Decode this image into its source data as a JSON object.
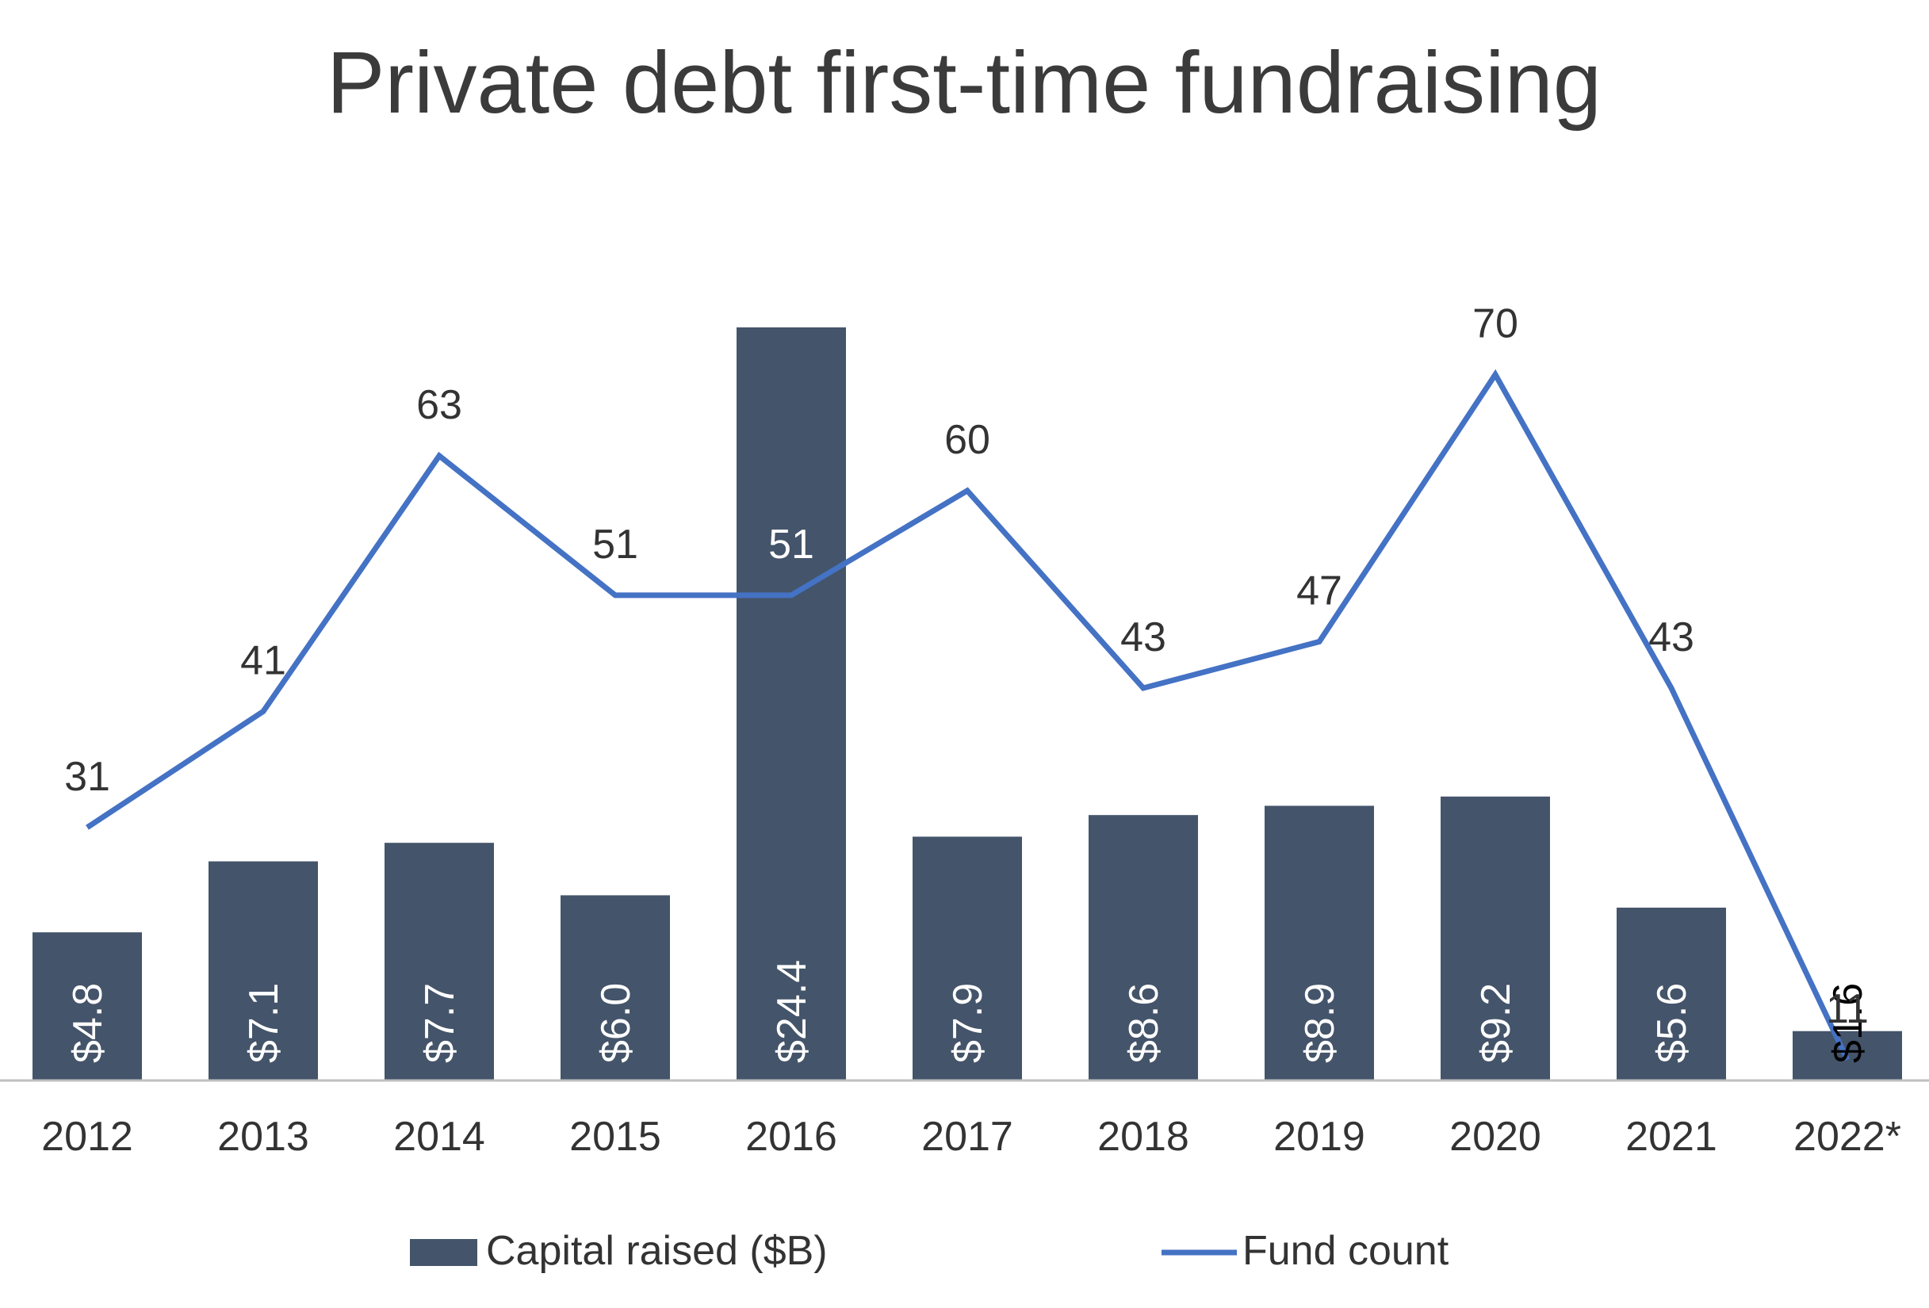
{
  "chart_data": {
    "type": "bar",
    "title": "Private debt first-time fundraising",
    "categories": [
      "2012",
      "2013",
      "2014",
      "2015",
      "2016",
      "2017",
      "2018",
      "2019",
      "2020",
      "2021",
      "2022*"
    ],
    "series": [
      {
        "name": "Capital raised ($B)",
        "type": "bar",
        "color": "#44546a",
        "values": [
          4.8,
          7.1,
          7.7,
          6.0,
          24.4,
          7.9,
          8.6,
          8.9,
          9.2,
          5.6,
          1.6
        ],
        "labels": [
          "$4.8",
          "$7.1",
          "$7.7",
          "$6.0",
          "$24.4",
          "$7.9",
          "$8.6",
          "$8.9",
          "$9.2",
          "$5.6",
          "$1.6"
        ]
      },
      {
        "name": "Fund count",
        "type": "line",
        "color": "#4472c4",
        "values": [
          31,
          41,
          63,
          51,
          51,
          60,
          43,
          47,
          70,
          43,
          11
        ],
        "labels": [
          "31",
          "41",
          "63",
          "51",
          "51",
          "60",
          "43",
          "47",
          "70",
          "43",
          "11"
        ]
      }
    ],
    "legend_position": "bottom",
    "grid": false
  }
}
